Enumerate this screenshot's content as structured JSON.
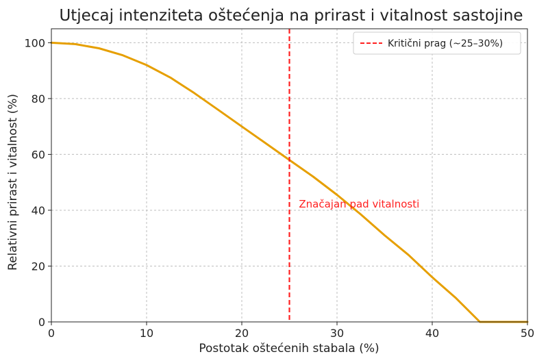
{
  "chart_data": {
    "type": "line",
    "title": "Utjecaj intenziteta oštećenja na prirast i vitalnost sastojine",
    "xlabel": "Postotak oštećenih stabala (%)",
    "ylabel": "Relativni prirast i vitalnost (%)",
    "xlim": [
      0,
      50
    ],
    "ylim": [
      0,
      105
    ],
    "x_ticks": [
      "0",
      "10",
      "20",
      "30",
      "40",
      "50"
    ],
    "y_ticks": [
      "0",
      "20",
      "40",
      "60",
      "80",
      "100"
    ],
    "grid": true,
    "legend_position": "top-right",
    "series": [
      {
        "color": "#E69F00",
        "points": [
          [
            0,
            100
          ],
          [
            2.5,
            99.5
          ],
          [
            5,
            98
          ],
          [
            7.5,
            95.5
          ],
          [
            10,
            92
          ],
          [
            12.5,
            87.5
          ],
          [
            15,
            82
          ],
          [
            17.5,
            76
          ],
          [
            20,
            70
          ],
          [
            22.5,
            64
          ],
          [
            25,
            58
          ],
          [
            27.5,
            52
          ],
          [
            30,
            45.5
          ],
          [
            32.5,
            38.5
          ],
          [
            35,
            31
          ],
          [
            37.5,
            24
          ],
          [
            40,
            16
          ],
          [
            42.5,
            8.5
          ],
          [
            45,
            0
          ],
          [
            47.5,
            0
          ],
          [
            50,
            0
          ]
        ]
      }
    ],
    "threshold": {
      "x": 25,
      "color": "#FF2020",
      "legend_label": "Kritični prag (~25–30%)"
    },
    "annotation": {
      "text": "Značajan pad vitalnosti",
      "x": 26,
      "y": 41,
      "color": "#FF2020"
    }
  }
}
